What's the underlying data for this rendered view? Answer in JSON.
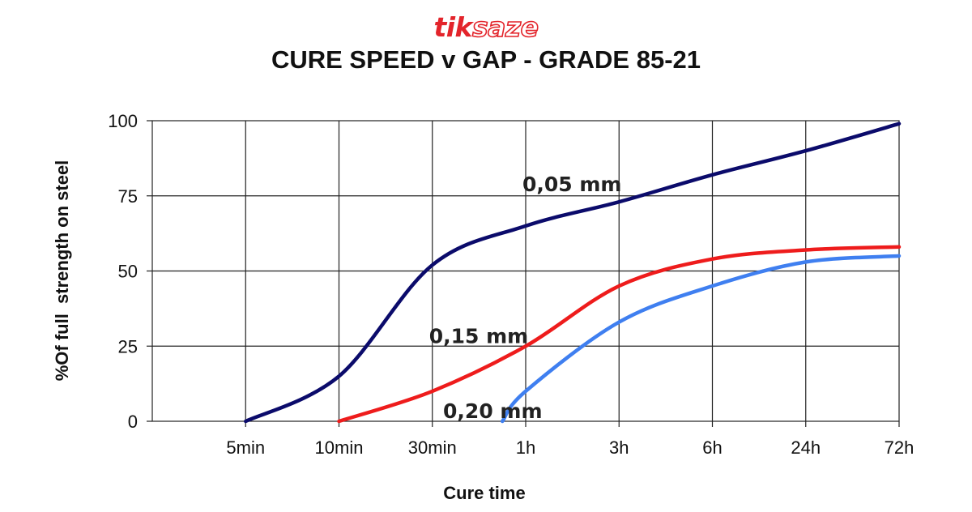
{
  "logo": {
    "part1": "tik",
    "part2": "saze"
  },
  "chart_data": {
    "type": "line",
    "title": "CURE SPEED v GAP - GRADE 85-21",
    "xlabel": "Cure time",
    "ylabel": "%Of full  strength on steel",
    "x_ticks": [
      "5min",
      "10min",
      "30min",
      "1h",
      "3h",
      "6h",
      "24h",
      "72h"
    ],
    "ylim": [
      0,
      100
    ],
    "y_ticks": [
      0,
      25,
      50,
      75,
      100
    ],
    "grid": true,
    "series": [
      {
        "name": "0,05 mm",
        "color": "#0b0b6b",
        "x": [
          "5min",
          "10min",
          "30min",
          "1h",
          "3h",
          "6h",
          "24h",
          "72h"
        ],
        "values": [
          0,
          15,
          52,
          65,
          73,
          82,
          90,
          99
        ]
      },
      {
        "name": "0,15 mm",
        "color": "#ee1c1c",
        "x": [
          "10min",
          "30min",
          "1h",
          "3h",
          "6h",
          "24h",
          "72h"
        ],
        "values": [
          0,
          10,
          25,
          45,
          54,
          57,
          58
        ]
      },
      {
        "name": "0,20 mm",
        "color": "#3f7ff0",
        "x": [
          "between 30min and 1h",
          "1h",
          "3h",
          "6h",
          "24h",
          "72h"
        ],
        "values": [
          0,
          10,
          33,
          45,
          53,
          55
        ]
      }
    ]
  }
}
